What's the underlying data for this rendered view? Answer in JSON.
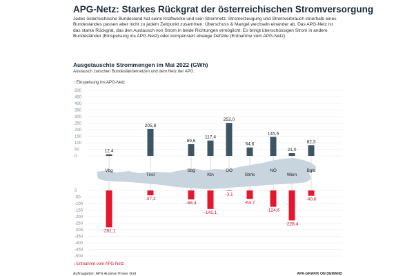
{
  "header": {
    "title": "APG-Netz: Starkes Rückgrat der österreichischen Stromversorgung",
    "intro": "Jedes österreichische Bundesland hat seine Kraftwerke und sein Stromnetz. Stromerzeugung und Stromverbrauch innerhalb eines Bundeslandes passen aber nicht zu jedem Zeitpunkt zusammen: Überschuss & Mangel wechseln einander ab. Das APG-Netz ist das starke Rückgrat, das den Austausch von Strom in beide Richtungen ermöglicht: Es bringt überschüssigen Strom in andere Bundesländer (Einspeisung ins APG-Netz) oder kompensiert etwaige Defizite (Entnahme vom APG-Netz).",
    "chart_title": "Ausgetauschte Strommengen im Mai 2022 (GWh)",
    "chart_subtitle": "Austausch zwischen Bundesländernetzen und dem Netz der APG."
  },
  "legend": {
    "up_arrow": "↑",
    "up_label": "Einspeisung ins APG-Netz",
    "down_arrow": "↓",
    "down_label": "Entnahme vom APG-Netz"
  },
  "footer": {
    "source": "Auftraggeber: APG Austrian Power Grid",
    "credit": "APA-GRAFIK ON DEMAND"
  },
  "colors": {
    "feed_in": "#3d5463",
    "withdrawal": "#e4172d",
    "map": "#c8d4de",
    "grid": "#e3e8ed",
    "axis_text": "#7a8796"
  },
  "chart_data": {
    "type": "bar",
    "categories": [
      "Vbg",
      "Tirol",
      "Sbg",
      "Ktn",
      "OÖ",
      "Stmk",
      "NÖ",
      "Wien",
      "Bgld"
    ],
    "series": [
      {
        "name": "Einspeisung ins APG-Netz",
        "values": [
          12.4,
          205.8,
          89.6,
          117.4,
          252.0,
          64.6,
          145.6,
          21.0,
          82.3
        ]
      },
      {
        "name": "Entnahme vom APG-Netz",
        "values": [
          -281.1,
          -37.2,
          -68.4,
          -141.1,
          -3.1,
          -64.7,
          -124.6,
          -228.4,
          -40.6
        ]
      }
    ],
    "feed_in_labels": [
      "12,4",
      "205,8",
      "89,6",
      "117,4",
      "252,0",
      "64,6",
      "145,6",
      "21,0",
      "82,3"
    ],
    "withdrawal_labels": [
      "-281,1",
      "-37,2",
      "-68,4",
      "-141,1",
      "-3,1",
      "-64,7",
      "-124,6",
      "-228,4",
      "-40,6"
    ],
    "y_ticks_up": [
      0,
      50,
      100,
      150,
      200,
      250,
      300,
      350,
      400,
      450,
      500
    ],
    "y_ticks_down": [
      0,
      -50,
      -100,
      -150,
      -200,
      -250,
      -300,
      -350,
      -400,
      -450,
      -500
    ],
    "ylim": [
      -500,
      500
    ],
    "grid": true,
    "legend_placement": "top-left and bottom-left"
  }
}
